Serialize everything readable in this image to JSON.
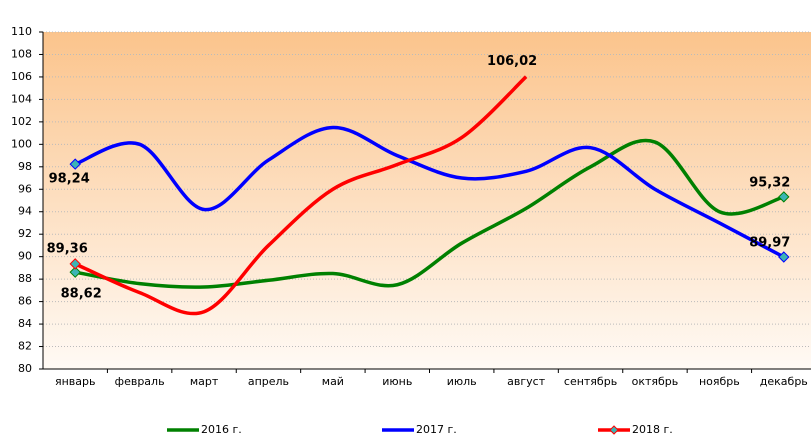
{
  "chart_data": {
    "type": "line",
    "categories": [
      "январь",
      "февраль",
      "март",
      "апрель",
      "май",
      "июнь",
      "июль",
      "август",
      "сентябрь",
      "октябрь",
      "ноябрь",
      "декабрь"
    ],
    "series": [
      {
        "name": "2016 г.",
        "color": "#008000",
        "values": [
          88.62,
          87.6,
          87.3,
          87.9,
          88.5,
          87.5,
          91.2,
          94.3,
          98.0,
          100.2,
          94.0,
          95.32
        ],
        "value_labels": [
          "88,62",
          null,
          null,
          null,
          null,
          null,
          null,
          null,
          null,
          null,
          null,
          "95,32"
        ]
      },
      {
        "name": "2017 г.",
        "color": "#0000ff",
        "values": [
          98.24,
          100.0,
          94.2,
          98.6,
          101.5,
          99.0,
          97.0,
          97.6,
          99.7,
          96.0,
          93.0,
          89.97
        ],
        "value_labels": [
          "98,24",
          null,
          null,
          null,
          null,
          null,
          null,
          null,
          null,
          null,
          null,
          "89,97"
        ]
      },
      {
        "name": "2018 г.",
        "color": "#ff0000",
        "values": [
          89.36,
          86.8,
          85.1,
          91.0,
          96.0,
          98.2,
          100.6,
          106.02,
          null,
          null,
          null,
          null
        ],
        "value_labels": [
          "89,36",
          null,
          null,
          null,
          null,
          null,
          null,
          "106,02",
          null,
          null,
          null,
          null
        ]
      }
    ],
    "ylim": [
      80,
      110
    ],
    "yticks": [
      80,
      82,
      84,
      86,
      88,
      90,
      92,
      94,
      96,
      98,
      100,
      102,
      104,
      106,
      108,
      110
    ],
    "grid": true,
    "legend": "bottom"
  }
}
